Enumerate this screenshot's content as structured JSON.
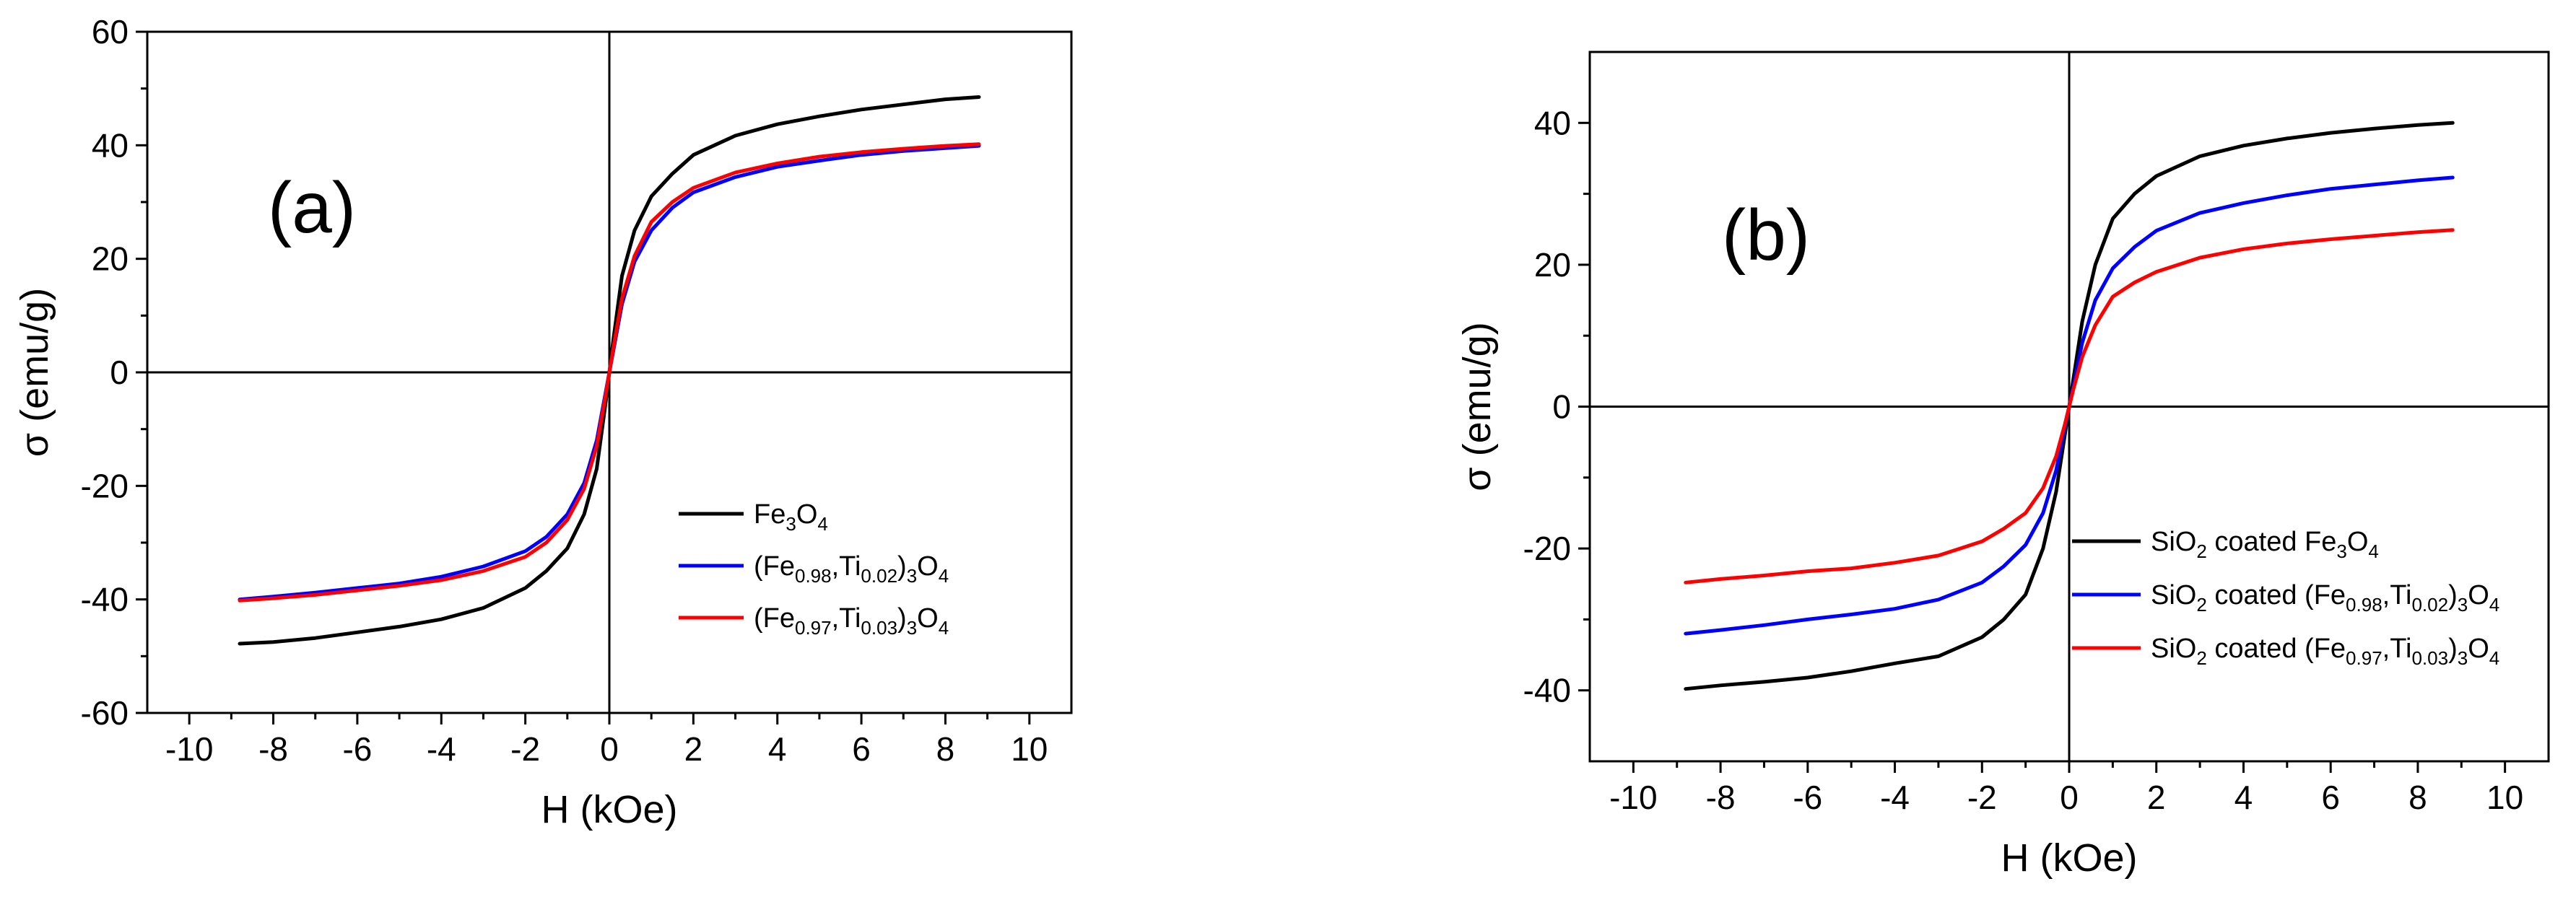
{
  "chart_data": [
    {
      "type": "line",
      "panel_label": "(a)",
      "xlabel": "H (kOe)",
      "ylabel": "σ (emu/g)",
      "xlim": [
        -11,
        11
      ],
      "ylim": [
        -60,
        60
      ],
      "xticks": [
        -10,
        -8,
        -6,
        -4,
        -2,
        0,
        2,
        4,
        6,
        8,
        10
      ],
      "yticks": [
        -60,
        -40,
        -20,
        0,
        20,
        40,
        60
      ],
      "legend_position": "bottom-right",
      "series": [
        {
          "name": "Fe3O4",
          "legend_label": {
            "parts": [
              {
                "t": "Fe"
              },
              {
                "t": "3",
                "sub": true
              },
              {
                "t": "O"
              },
              {
                "t": "4",
                "sub": true
              }
            ]
          },
          "color": "#000000",
          "x": [
            -8.8,
            -8,
            -7,
            -6,
            -5,
            -4,
            -3,
            -2,
            -1.5,
            -1,
            -0.6,
            -0.3,
            -0.1,
            0,
            0.1,
            0.3,
            0.6,
            1,
            1.5,
            2,
            3,
            4,
            5,
            6,
            7,
            8,
            8.8
          ],
          "y": [
            -47.8,
            -47.5,
            -46.8,
            -45.8,
            -44.8,
            -43.5,
            -41.5,
            -38,
            -35,
            -31,
            -25,
            -17,
            -6,
            0,
            6,
            17,
            25,
            31,
            35,
            38.3,
            41.7,
            43.7,
            45.1,
            46.3,
            47.2,
            48.1,
            48.5
          ]
        },
        {
          "name": "(Fe0.98,Ti0.02)3O4",
          "legend_label": {
            "parts": [
              {
                "t": "(Fe"
              },
              {
                "t": "0.98",
                "sub": true
              },
              {
                "t": ",Ti"
              },
              {
                "t": "0.02",
                "sub": true
              },
              {
                "t": ")"
              },
              {
                "t": "3",
                "sub": true
              },
              {
                "t": "O"
              },
              {
                "t": "4",
                "sub": true
              }
            ]
          },
          "color": "#0000ff",
          "x": [
            -8.8,
            -8,
            -7,
            -6,
            -5,
            -4,
            -3,
            -2,
            -1.5,
            -1,
            -0.6,
            -0.3,
            -0.1,
            0,
            0.1,
            0.3,
            0.6,
            1,
            1.5,
            2,
            3,
            4,
            5,
            6,
            7,
            8,
            8.8
          ],
          "y": [
            -40,
            -39.5,
            -38.8,
            -38,
            -37.2,
            -36,
            -34.2,
            -31.5,
            -29,
            -25,
            -19.5,
            -12,
            -4,
            0,
            4,
            12,
            19.5,
            25,
            29,
            31.7,
            34.4,
            36.2,
            37.3,
            38.3,
            39,
            39.5,
            39.9
          ]
        },
        {
          "name": "(Fe0.97,Ti0.03)3O4",
          "legend_label": {
            "parts": [
              {
                "t": "(Fe"
              },
              {
                "t": "0.97",
                "sub": true
              },
              {
                "t": ",Ti"
              },
              {
                "t": "0.03",
                "sub": true
              },
              {
                "t": ")"
              },
              {
                "t": "3",
                "sub": true
              },
              {
                "t": "O"
              },
              {
                "t": "4",
                "sub": true
              }
            ]
          },
          "color": "#ff0000",
          "x": [
            -8.8,
            -8,
            -7,
            -6,
            -5,
            -4,
            -3,
            -2,
            -1.5,
            -1,
            -0.6,
            -0.3,
            -0.1,
            0,
            0.1,
            0.3,
            0.6,
            1,
            1.5,
            2,
            3,
            4,
            5,
            6,
            7,
            8,
            8.8
          ],
          "y": [
            -40.2,
            -39.8,
            -39.2,
            -38.4,
            -37.6,
            -36.6,
            -35,
            -32.5,
            -30,
            -26,
            -20.5,
            -13,
            -4.5,
            0,
            4.5,
            13,
            20.5,
            26.5,
            30,
            32.5,
            35.2,
            36.8,
            38,
            38.8,
            39.4,
            39.9,
            40.2
          ]
        }
      ]
    },
    {
      "type": "line",
      "panel_label": "(b)",
      "xlabel": "H (kOe)",
      "ylabel": "σ (emu/g)",
      "xlim": [
        -11,
        11
      ],
      "ylim": [
        -50,
        50
      ],
      "xticks": [
        -10,
        -8,
        -6,
        -4,
        -2,
        0,
        2,
        4,
        6,
        8,
        10
      ],
      "yticks": [
        -40,
        -20,
        0,
        20,
        40
      ],
      "legend_position": "bottom-right",
      "series": [
        {
          "name": "SiO2 coated Fe3O4",
          "legend_label": {
            "parts": [
              {
                "t": "SiO"
              },
              {
                "t": "2",
                "sub": true
              },
              {
                "t": " coated Fe"
              },
              {
                "t": "3",
                "sub": true
              },
              {
                "t": "O"
              },
              {
                "t": "4",
                "sub": true
              }
            ]
          },
          "color": "#000000",
          "x": [
            -8.8,
            -8,
            -7,
            -6,
            -5,
            -4,
            -3,
            -2,
            -1.5,
            -1,
            -0.6,
            -0.3,
            -0.1,
            0,
            0.1,
            0.3,
            0.6,
            1,
            1.5,
            2,
            3,
            4,
            5,
            6,
            7,
            8,
            8.8
          ],
          "y": [
            -39.8,
            -39.3,
            -38.8,
            -38.2,
            -37.3,
            -36.2,
            -35.2,
            -32.5,
            -30,
            -26.5,
            -20,
            -12,
            -4,
            0,
            4,
            12,
            20,
            26.5,
            30,
            32.5,
            35.3,
            36.8,
            37.8,
            38.6,
            39.2,
            39.7,
            40
          ]
        },
        {
          "name": "SiO2 coated (Fe0.98,Ti0.02)3O4",
          "legend_label": {
            "parts": [
              {
                "t": "SiO"
              },
              {
                "t": "2",
                "sub": true
              },
              {
                "t": " coated (Fe"
              },
              {
                "t": "0.98",
                "sub": true
              },
              {
                "t": ",Ti"
              },
              {
                "t": "0.02",
                "sub": true
              },
              {
                "t": ")"
              },
              {
                "t": "3",
                "sub": true
              },
              {
                "t": "O"
              },
              {
                "t": "4",
                "sub": true
              }
            ]
          },
          "color": "#0000ff",
          "x": [
            -8.8,
            -8,
            -7,
            -6,
            -5,
            -4,
            -3,
            -2,
            -1.5,
            -1,
            -0.6,
            -0.3,
            -0.1,
            0,
            0.1,
            0.3,
            0.6,
            1,
            1.5,
            2,
            3,
            4,
            5,
            6,
            7,
            8,
            8.8
          ],
          "y": [
            -32,
            -31.5,
            -30.8,
            -30,
            -29.3,
            -28.5,
            -27.2,
            -24.8,
            -22.5,
            -19.5,
            -15,
            -9,
            -3,
            0,
            3,
            9,
            15,
            19.5,
            22.5,
            24.8,
            27.3,
            28.7,
            29.8,
            30.7,
            31.3,
            31.9,
            32.3
          ]
        },
        {
          "name": "SiO2 coated (Fe0.97,Ti0.03)3O4",
          "legend_label": {
            "parts": [
              {
                "t": "SiO"
              },
              {
                "t": "2",
                "sub": true
              },
              {
                "t": " coated (Fe"
              },
              {
                "t": "0.97",
                "sub": true
              },
              {
                "t": ",Ti"
              },
              {
                "t": "0.03",
                "sub": true
              },
              {
                "t": ")"
              },
              {
                "t": "3",
                "sub": true
              },
              {
                "t": "O"
              },
              {
                "t": "4",
                "sub": true
              }
            ]
          },
          "color": "#ff0000",
          "x": [
            -8.8,
            -8,
            -7,
            -6,
            -5,
            -4,
            -3,
            -2,
            -1.5,
            -1,
            -0.6,
            -0.3,
            -0.1,
            0,
            0.1,
            0.3,
            0.6,
            1,
            1.5,
            2,
            3,
            4,
            5,
            6,
            7,
            8,
            8.8
          ],
          "y": [
            -24.8,
            -24.3,
            -23.8,
            -23.2,
            -22.8,
            -22,
            -21,
            -19,
            -17.2,
            -15,
            -11.5,
            -7,
            -2.5,
            0,
            2.5,
            7,
            11.5,
            15.5,
            17.5,
            19,
            21,
            22.2,
            23,
            23.6,
            24.1,
            24.6,
            24.9
          ]
        }
      ]
    }
  ]
}
